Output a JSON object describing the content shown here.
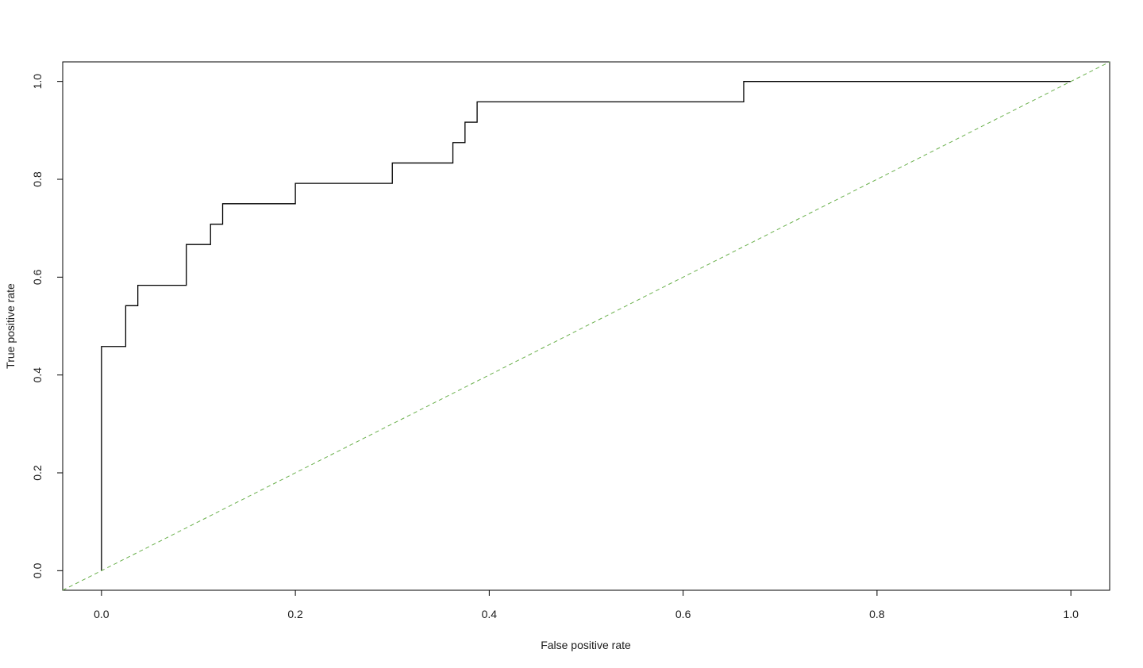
{
  "chart_data": {
    "type": "line",
    "title": "",
    "xlabel": "False positive rate",
    "ylabel": "True positive rate",
    "xlim": [
      -0.04,
      1.04
    ],
    "ylim": [
      -0.04,
      1.04
    ],
    "x_ticks": [
      "0.0",
      "0.2",
      "0.4",
      "0.6",
      "0.8",
      "1.0"
    ],
    "y_ticks": [
      "0.0",
      "0.2",
      "0.4",
      "0.6",
      "0.8",
      "1.0"
    ],
    "grid": false,
    "legend": "none",
    "series": [
      {
        "style": "step",
        "color": "#000000",
        "x": [
          0.0,
          0.0,
          0.025,
          0.025,
          0.0375,
          0.0375,
          0.0875,
          0.0875,
          0.1125,
          0.1125,
          0.125,
          0.125,
          0.2,
          0.2,
          0.3,
          0.3,
          0.3625,
          0.3625,
          0.375,
          0.375,
          0.3875,
          0.3875,
          0.6625,
          0.6625,
          1.0
        ],
        "y": [
          0.0,
          0.4583,
          0.4583,
          0.5417,
          0.5417,
          0.5833,
          0.5833,
          0.6667,
          0.6667,
          0.7083,
          0.7083,
          0.75,
          0.75,
          0.7917,
          0.7917,
          0.8333,
          0.8333,
          0.875,
          0.875,
          0.9167,
          0.9167,
          0.9583,
          0.9583,
          1.0,
          1.0
        ]
      },
      {
        "style": "dashed",
        "color": "#6ab04c",
        "x": [
          -0.04,
          1.04
        ],
        "y": [
          -0.04,
          1.04
        ]
      }
    ]
  }
}
